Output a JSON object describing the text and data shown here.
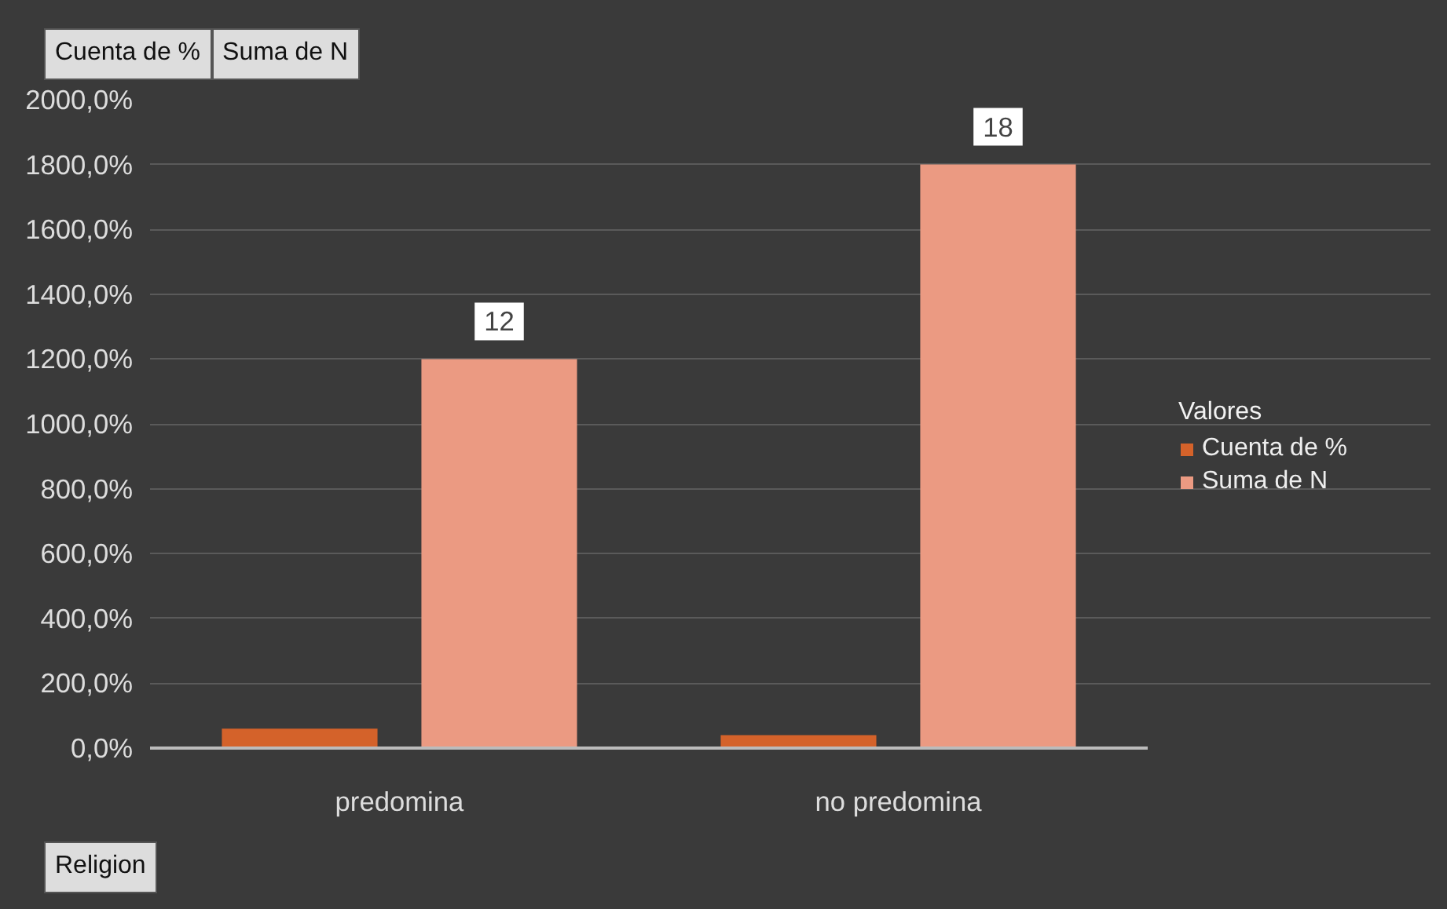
{
  "chart_data": {
    "type": "bar",
    "categories": [
      "predomina",
      "no predomina"
    ],
    "xlabel": "Religion",
    "series": [
      {
        "name": "Cuenta de %",
        "color": "#d4622a",
        "values": [
          0.6,
          0.4
        ]
      },
      {
        "name": "Suma de N",
        "color": "#eb9a82",
        "values": [
          12,
          18
        ],
        "data_labels": true
      }
    ],
    "ylim": [
      0,
      20
    ],
    "yticks": [
      {
        "value": 0,
        "label": "0,0%"
      },
      {
        "value": 2,
        "label": "200,0%"
      },
      {
        "value": 4,
        "label": "400,0%"
      },
      {
        "value": 6,
        "label": "600,0%"
      },
      {
        "value": 8,
        "label": "800,0%"
      },
      {
        "value": 10,
        "label": "1000,0%"
      },
      {
        "value": 12,
        "label": "1200,0%"
      },
      {
        "value": 14,
        "label": "1400,0%"
      },
      {
        "value": 16,
        "label": "1600,0%"
      },
      {
        "value": 18,
        "label": "1800,0%"
      },
      {
        "value": 20,
        "label": "2000,0%"
      }
    ],
    "legend_title": "Valores",
    "legend": "right",
    "grid": "y",
    "annotations": [
      "Cuenta de %",
      "Suma de N"
    ]
  }
}
